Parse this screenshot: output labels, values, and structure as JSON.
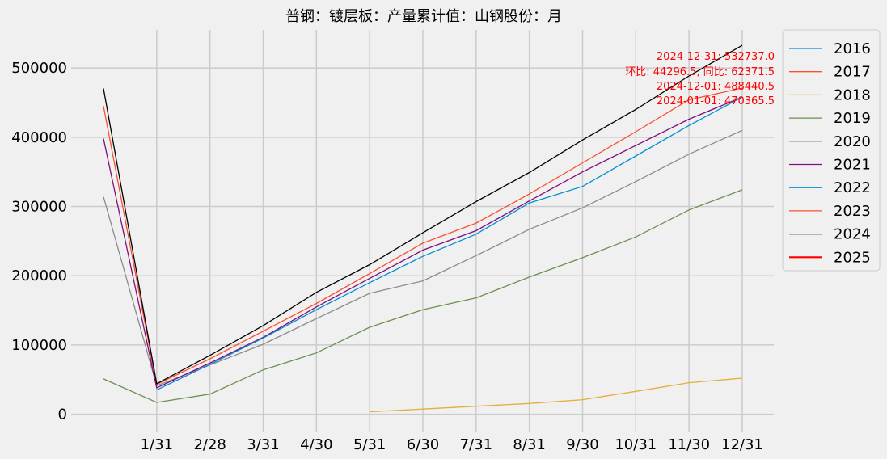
{
  "chart_data": {
    "type": "line",
    "title": "普钢：镀层板：产量累计值：山钢股份：月",
    "xlabel": "",
    "ylabel": "",
    "categories": [
      "",
      "1/31",
      "2/28",
      "3/31",
      "4/30",
      "5/31",
      "6/30",
      "7/31",
      "8/31",
      "9/30",
      "10/31",
      "11/30",
      "12/31"
    ],
    "ylim": [
      -25000,
      555000
    ],
    "yticks": [
      0,
      100000,
      200000,
      300000,
      400000,
      500000
    ],
    "ytick_labels": [
      "0",
      "100000",
      "200000",
      "300000",
      "400000",
      "500000"
    ],
    "grid": true,
    "legend_position": "outside-right",
    "series": [
      {
        "name": "2016",
        "color": "#008fd5",
        "values": [
          null,
          null,
          null,
          null,
          null,
          null,
          null,
          null,
          null,
          null,
          null,
          null,
          null
        ]
      },
      {
        "name": "2017",
        "color": "#fc4f30",
        "values": [
          null,
          null,
          null,
          null,
          null,
          null,
          null,
          null,
          null,
          null,
          null,
          null,
          null
        ]
      },
      {
        "name": "2018",
        "color": "#e5ae38",
        "values": [
          null,
          null,
          null,
          null,
          null,
          3500,
          7500,
          11500,
          15500,
          21000,
          33000,
          45500,
          52000
        ]
      },
      {
        "name": "2019",
        "color": "#6d904f",
        "values": [
          51000,
          17000,
          29000,
          64000,
          88500,
          125500,
          151000,
          168000,
          198000,
          226000,
          256000,
          295000,
          324000
        ]
      },
      {
        "name": "2020",
        "color": "#8b8b8b",
        "values": [
          314000,
          41000,
          71000,
          101000,
          138000,
          174500,
          192500,
          229000,
          267000,
          298000,
          336000,
          375500,
          410000
        ]
      },
      {
        "name": "2021",
        "color": "#810f7c",
        "values": [
          398000,
          38000,
          74000,
          111000,
          155000,
          196000,
          237000,
          265000,
          308000,
          350000,
          388000,
          426000,
          458000
        ]
      },
      {
        "name": "2022",
        "color": "#008fd5",
        "values": [
          null,
          35000,
          72000,
          110000,
          151000,
          190000,
          228000,
          260000,
          305000,
          329000,
          373000,
          417000,
          458000
        ]
      },
      {
        "name": "2023",
        "color": "#fc4f30",
        "values": [
          445000,
          43000,
          80000,
          120000,
          160000,
          203000,
          247000,
          276000,
          318000,
          363000,
          408000,
          454000,
          471000
        ]
      },
      {
        "name": "2024",
        "color": "#000000",
        "values": [
          470365.5,
          44000,
          85000,
          128000,
          176000,
          216000,
          262000,
          307000,
          349000,
          396000,
          440000,
          488440.5,
          532737.0
        ]
      },
      {
        "name": "2025",
        "color": "#ff0000",
        "values": [
          null,
          null,
          null,
          null,
          null,
          null,
          null,
          null,
          null,
          null,
          null,
          null,
          null
        ]
      }
    ],
    "annotations": [
      "2024-12-31: 532737.0",
      "环比: 44296.5, 同比: 62371.5",
      "2024-12-01: 488440.5",
      "2024-01-01: 470365.5"
    ]
  }
}
